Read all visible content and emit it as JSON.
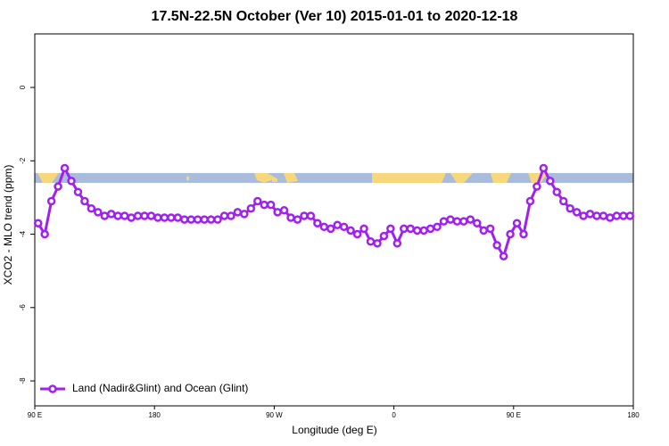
{
  "chart_data": {
    "type": "line",
    "title": "17.5N-22.5N October (Ver 10)   2015-01-01 to 2020-12-18",
    "x_label": "Longitude (deg E)",
    "y_label": "XCO2 - MLO trend (ppm)",
    "x": [
      92.5,
      97.5,
      102.5,
      107.5,
      112.5,
      117.5,
      122.5,
      127.5,
      132.5,
      137.5,
      142.5,
      147.5,
      152.5,
      157.5,
      162.5,
      167.5,
      172.5,
      177.5,
      182.5,
      187.5,
      192.5,
      197.5,
      202.5,
      207.5,
      212.5,
      217.5,
      222.5,
      227.5,
      232.5,
      237.5,
      242.5,
      247.5,
      252.5,
      257.5,
      262.5,
      267.5,
      272.5,
      277.5,
      282.5,
      287.5,
      292.5,
      297.5,
      302.5,
      307.5,
      312.5,
      317.5,
      322.5,
      327.5,
      332.5,
      337.5,
      342.5,
      347.5,
      352.5,
      357.5,
      362.5,
      367.5,
      372.5,
      377.5,
      382.5,
      387.5,
      392.5,
      397.5,
      402.5,
      407.5,
      412.5,
      417.5,
      422.5,
      427.5,
      432.5,
      437.5,
      442.5,
      447.5,
      452.5,
      457.5,
      462.5,
      467.5,
      472.5,
      477.5,
      482.5,
      487.5,
      492.5,
      497.5,
      502.5,
      507.5,
      512.5,
      517.5,
      522.5,
      527.5,
      532.5,
      537.5
    ],
    "series": [
      {
        "name": "Land (Nadir&Glint) and Ocean (Glint)",
        "color": "#a020f0",
        "values": [
          -3.7,
          -4.0,
          -3.1,
          -2.7,
          -2.2,
          -2.55,
          -2.85,
          -3.1,
          -3.3,
          -3.4,
          -3.5,
          -3.45,
          -3.5,
          -3.5,
          -3.55,
          -3.5,
          -3.5,
          -3.5,
          -3.55,
          -3.55,
          -3.55,
          -3.55,
          -3.6,
          -3.6,
          -3.6,
          -3.6,
          -3.6,
          -3.6,
          -3.5,
          -3.5,
          -3.4,
          -3.45,
          -3.3,
          -3.1,
          -3.2,
          -3.2,
          -3.4,
          -3.35,
          -3.55,
          -3.6,
          -3.5,
          -3.5,
          -3.7,
          -3.8,
          -3.85,
          -3.75,
          -3.8,
          -3.9,
          -4.0,
          -3.85,
          -4.2,
          -4.25,
          -4.05,
          -3.85,
          -4.25,
          -3.85,
          -3.85,
          -3.9,
          -3.9,
          -3.85,
          -3.8,
          -3.65,
          -3.6,
          -3.65,
          -3.65,
          -3.6,
          -3.7,
          -3.9,
          -3.85,
          -4.3,
          -4.6,
          -4.0,
          -3.7,
          -4.0,
          -3.1,
          -2.7,
          -2.2,
          -2.55,
          -2.85,
          -3.1,
          -3.3,
          -3.4,
          -3.5,
          -3.45,
          -3.5,
          -3.5,
          -3.55,
          -3.5,
          -3.5,
          -3.5
        ]
      }
    ],
    "xlim": [
      90,
      540
    ],
    "xticks": [
      {
        "value": 90,
        "label": "90 E"
      },
      {
        "value": 180,
        "label": "180"
      },
      {
        "value": 270,
        "label": "90 W"
      },
      {
        "value": 360,
        "label": "0"
      },
      {
        "value": 450,
        "label": "90 E"
      },
      {
        "value": 540,
        "label": "180"
      }
    ],
    "ylim": [
      -8.68,
      1.46
    ],
    "yticks": [
      0,
      -2,
      -4,
      -6,
      -8
    ],
    "legend": "bottom-left"
  }
}
